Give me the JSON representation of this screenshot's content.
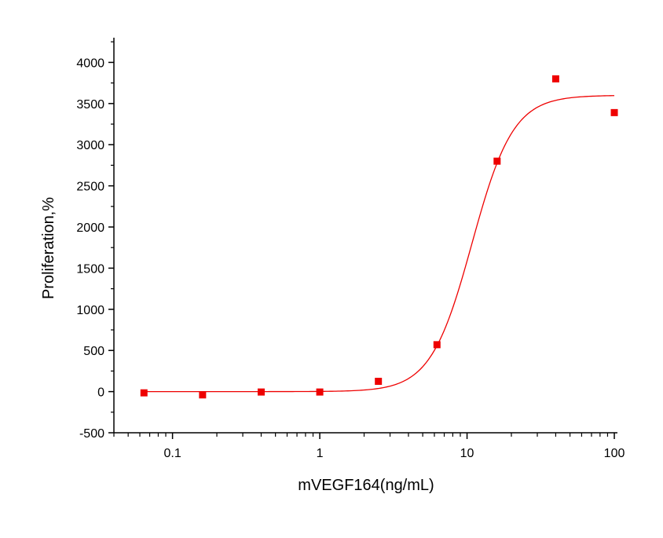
{
  "chart_data": {
    "type": "scatter",
    "title": "",
    "xlabel": "mVEGF164(ng/mL)",
    "ylabel": "Proliferation,%",
    "xscale": "log",
    "xlim": [
      0.04,
      105
    ],
    "ylim": [
      -500,
      4300
    ],
    "xticks": [
      0.1,
      1,
      10,
      100
    ],
    "xtick_labels": [
      "0.1",
      "1",
      "10",
      "100"
    ],
    "yticks": [
      -500,
      0,
      500,
      1000,
      1500,
      2000,
      2500,
      3000,
      3500,
      4000
    ],
    "ytick_labels": [
      "-500",
      "0",
      "500",
      "1000",
      "1500",
      "2000",
      "2500",
      "3000",
      "3500",
      "4000"
    ],
    "grid": false,
    "legend": "none",
    "series": [
      {
        "type": "scatter",
        "x": [
          0.064,
          0.16,
          0.4,
          1.0,
          2.5,
          6.25,
          16,
          40,
          100
        ],
        "y": [
          -15,
          -40,
          -5,
          -5,
          125,
          570,
          2800,
          3800,
          3390
        ],
        "color": "#ee0000",
        "marker": "square"
      },
      {
        "type": "line",
        "fit": "4PL",
        "params": {
          "bottom": 0,
          "top": 3600,
          "ec50": 10.8,
          "hill": 3.1
        },
        "x_range": [
          0.064,
          100
        ],
        "color": "#ee0000"
      }
    ]
  }
}
